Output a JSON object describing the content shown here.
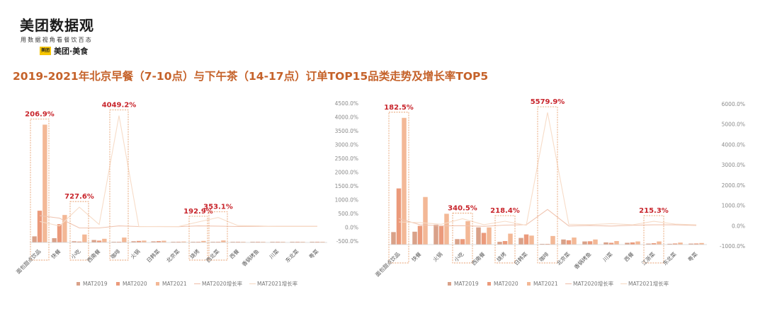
{
  "brand": {
    "name": "美团数据观",
    "slogan": "用数据视角看餐饮百态",
    "badge": "美团",
    "sub": "美团·美食"
  },
  "title": "2019-2021年北京早餐（7-10点）与下午茶（14-17点）订单TOP15品类走势及增长率TOP5",
  "colors": {
    "mat2019": "#d9a189",
    "mat2020": "#eb9a7b",
    "mat2021": "#f3b896",
    "line2020": "#f0c4b0",
    "line2021": "#f7dcc8",
    "highlight": "#c8242b",
    "box": "#e8a070"
  },
  "chart_data": [
    {
      "type": "bar",
      "categories": [
        "面包甜点饮品",
        "快餐",
        "小吃",
        "西南餐",
        "咖啡",
        "火锅",
        "日韩菜",
        "北京菜",
        "烧烤",
        "西北菜",
        "西餐",
        "香锅烤鱼",
        "川菜",
        "东北菜",
        "粤菜"
      ],
      "series": [
        {
          "name": "MAT2019",
          "values": [
            100,
            70,
            20,
            40,
            2,
            20,
            18,
            10,
            4,
            5,
            4,
            3,
            3,
            3,
            3
          ]
        },
        {
          "name": "MAT2020",
          "values": [
            520,
            300,
            15,
            30,
            3,
            25,
            22,
            12,
            6,
            7,
            5,
            4,
            4,
            4,
            4
          ]
        },
        {
          "name": "MAT2021",
          "values": [
            1930,
            450,
            130,
            60,
            80,
            30,
            28,
            15,
            25,
            32,
            8,
            6,
            5,
            5,
            5
          ]
        },
        {
          "name": "MAT2020增长率",
          "axis": "right",
          "values": [
            420,
            330,
            -25,
            -25,
            50,
            25,
            22,
            20,
            50,
            40,
            25,
            33,
            33,
            33,
            33
          ]
        },
        {
          "name": "MAT2021增长率",
          "axis": "right",
          "values": [
            206.9,
            50,
            727.6,
            100,
            4049.2,
            20,
            27,
            25,
            192.9,
            353.1,
            60,
            50,
            25,
            25,
            25
          ]
        }
      ],
      "ylim_left": [
        0,
        2050
      ],
      "ylim_right": [
        -500,
        4500
      ],
      "right_ticks": [
        "-500.0%",
        "0.0%",
        "500.0%",
        "1000.0%",
        "1500.0%",
        "2000.0%",
        "2500.0%",
        "3000.0%",
        "3500.0%",
        "4000.0%",
        "4500.0%"
      ],
      "right_tick_values": [
        -500,
        0,
        500,
        1000,
        1500,
        2000,
        2500,
        3000,
        3500,
        4000,
        4500
      ],
      "annotations": [
        {
          "text": "206.9%",
          "index": 0,
          "value": 206.9
        },
        {
          "text": "727.6%",
          "index": 2,
          "value": 727.6
        },
        {
          "text": "4049.2%",
          "index": 4,
          "value": 4049.2
        },
        {
          "text": "192.9%",
          "index": 8,
          "value": 192.9
        },
        {
          "text": "353.1%",
          "index": 9,
          "value": 353.1
        }
      ],
      "legend": [
        "MAT2019",
        "MAT2020",
        "MAT2021",
        "MAT2020增长率",
        "MAT2021增长率"
      ],
      "legend_position": "bottom"
    },
    {
      "type": "bar",
      "categories": [
        "面包甜点饮品",
        "快餐",
        "火锅",
        "小吃",
        "西南餐",
        "烧烤",
        "日韩菜",
        "咖啡",
        "北京菜",
        "香锅烤鱼",
        "川菜",
        "西餐",
        "江浙菜",
        "东北菜",
        "粤菜"
      ],
      "series": [
        {
          "name": "MAT2019",
          "values": [
            320,
            330,
            510,
            140,
            440,
            70,
            170,
            2,
            130,
            80,
            55,
            45,
            25,
            20,
            25
          ]
        },
        {
          "name": "MAT2020",
          "values": [
            1440,
            480,
            470,
            140,
            300,
            90,
            260,
            18,
            110,
            85,
            45,
            55,
            35,
            28,
            28
          ]
        },
        {
          "name": "MAT2021",
          "values": [
            3250,
            1220,
            790,
            600,
            440,
            280,
            230,
            220,
            180,
            130,
            90,
            80,
            80,
            50,
            40
          ]
        },
        {
          "name": "MAT2020增长率",
          "axis": "right",
          "values": [
            350,
            45,
            -8,
            0,
            -32,
            28,
            50,
            800,
            -15,
            6,
            -18,
            22,
            40,
            40,
            12
          ]
        },
        {
          "name": "MAT2021增长率",
          "axis": "right",
          "values": [
            182.5,
            154,
            68,
            340.5,
            47,
            218.4,
            20,
            5579.9,
            70,
            53,
            100,
            45,
            215.3,
            78,
            43
          ]
        }
      ],
      "ylim_left": [
        0,
        3300
      ],
      "ylim_right": [
        -1000,
        6000
      ],
      "right_ticks": [
        "-1000.0%",
        "0.0%",
        "1000.0%",
        "2000.0%",
        "3000.0%",
        "4000.0%",
        "5000.0%",
        "6000.0%"
      ],
      "right_tick_values": [
        -1000,
        0,
        1000,
        2000,
        3000,
        4000,
        5000,
        6000
      ],
      "annotations": [
        {
          "text": "182.5%",
          "index": 0,
          "value": 182.5
        },
        {
          "text": "340.5%",
          "index": 3,
          "value": 340.5
        },
        {
          "text": "218.4%",
          "index": 5,
          "value": 218.4
        },
        {
          "text": "5579.9%",
          "index": 7,
          "value": 5579.9
        },
        {
          "text": "215.3%",
          "index": 12,
          "value": 215.3
        }
      ],
      "legend": [
        "MAT2019",
        "MAT2020",
        "MAT2021",
        "MAT2020增长率",
        "MAT2021增长率"
      ],
      "legend_position": "bottom"
    }
  ]
}
